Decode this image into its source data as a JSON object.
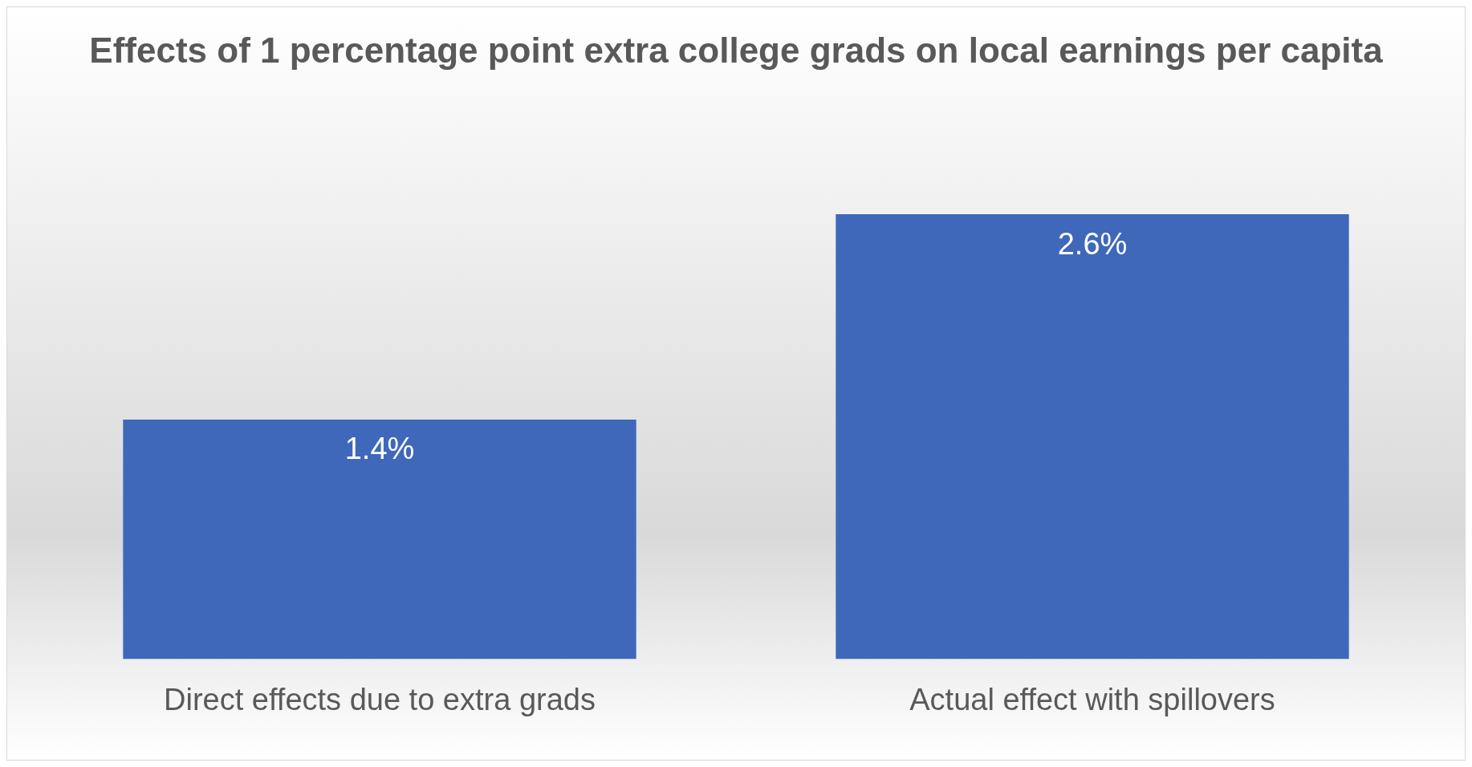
{
  "chart_data": {
    "type": "bar",
    "title": "Effects of 1 percentage point extra college grads on local earnings per capita",
    "categories": [
      "Direct effects due to extra grads",
      "Actual effect with spillovers"
    ],
    "values": [
      1.4,
      2.6
    ],
    "value_labels": [
      "1.4%",
      "2.6%"
    ],
    "color": "#3f68bb",
    "grid": false,
    "legend": false
  }
}
